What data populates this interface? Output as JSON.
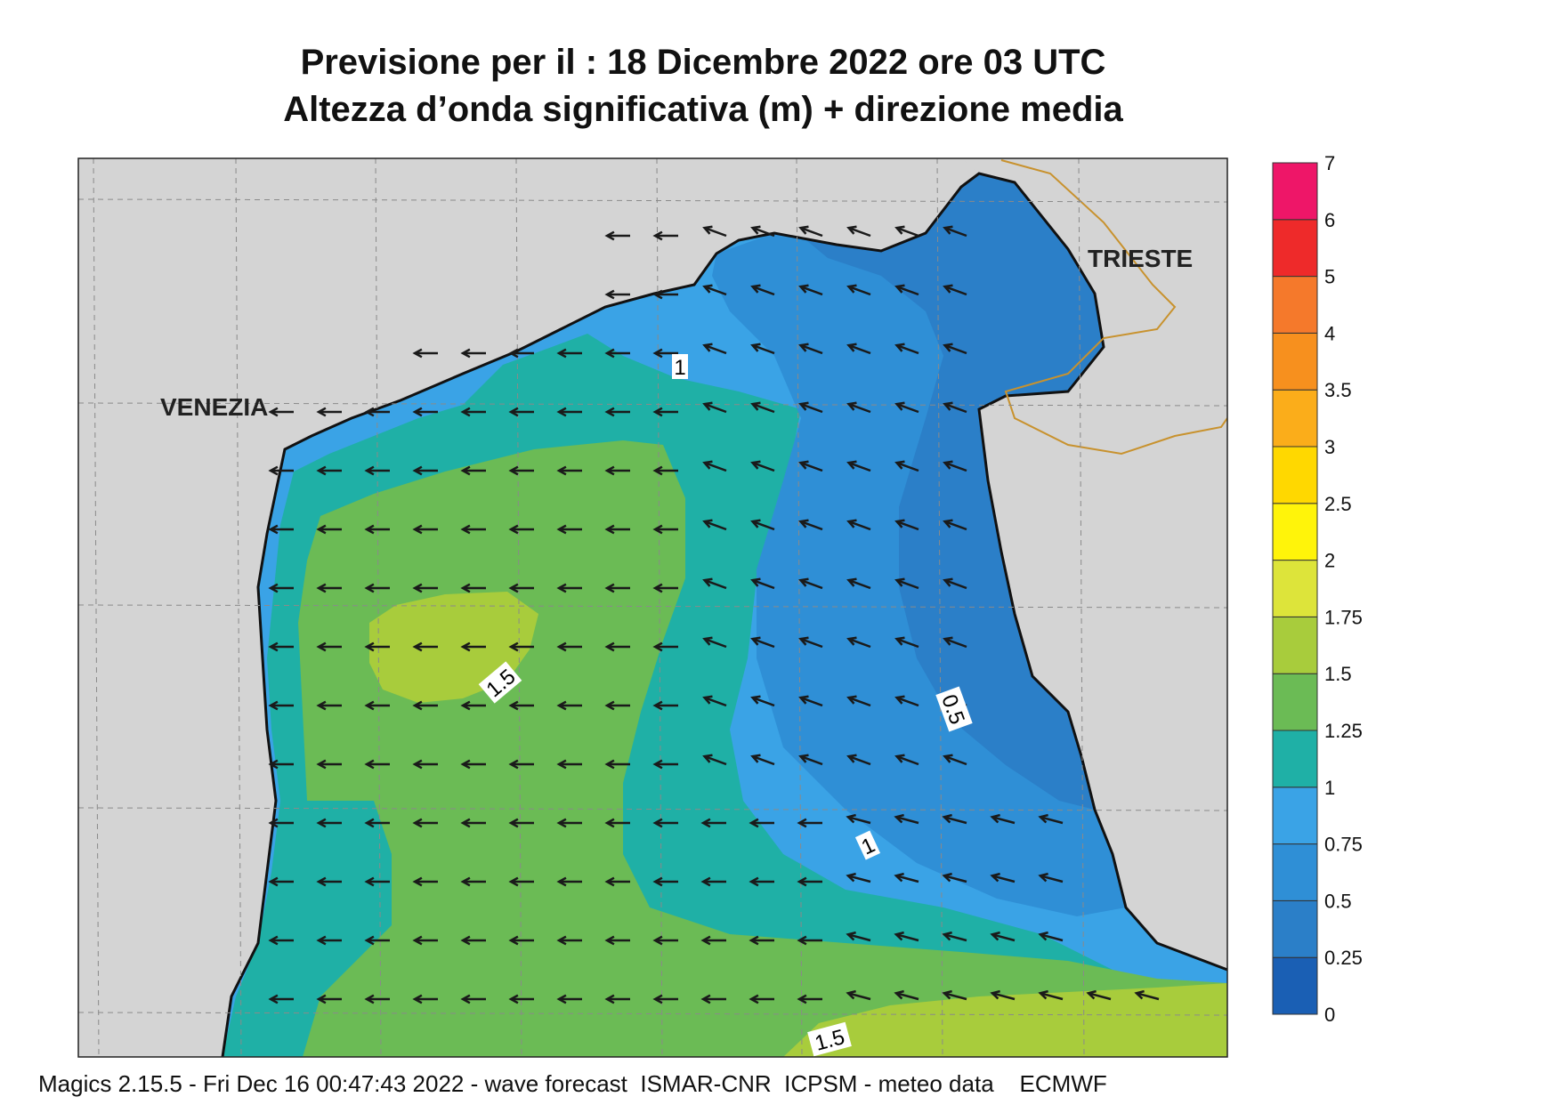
{
  "title_line1": "Previsione per il  :  18 Dicembre  2022   ore 03 UTC",
  "title_line2": "Altezza d’onda significativa (m) + direzione media",
  "footer": "Magics 2.15.5 - Fri Dec 16 00:47:43 2022 - wave forecast  ISMAR-CNR  ICPSM - meteo data    ECMWF",
  "places": [
    {
      "name": "VENEZIA"
    },
    {
      "name": "TRIESTE"
    }
  ],
  "contour_labels": [
    "1",
    "1.5",
    "0.5",
    "1",
    "1.5"
  ],
  "colorbar": {
    "bins": [
      {
        "from": "0",
        "to": "0.25",
        "color": "#1a5fb4"
      },
      {
        "from": "0.25",
        "to": "0.5",
        "color": "#2b7fc8"
      },
      {
        "from": "0.5",
        "to": "0.75",
        "color": "#2f8fd6"
      },
      {
        "from": "0.75",
        "to": "1",
        "color": "#3aa3e6"
      },
      {
        "from": "1",
        "to": "1.25",
        "color": "#1fb0a6"
      },
      {
        "from": "1.25",
        "to": "1.5",
        "color": "#6bbb55"
      },
      {
        "from": "1.5",
        "to": "1.75",
        "color": "#a8cc3c"
      },
      {
        "from": "1.75",
        "to": "2",
        "color": "#dde43a"
      },
      {
        "from": "2",
        "to": "2.5",
        "color": "#fff40a"
      },
      {
        "from": "2.5",
        "to": "3",
        "color": "#ffd800"
      },
      {
        "from": "3",
        "to": "3.5",
        "color": "#fbad1a"
      },
      {
        "from": "3.5",
        "to": "4",
        "color": "#f7901e"
      },
      {
        "from": "4",
        "to": "5",
        "color": "#f5792b"
      },
      {
        "from": "5",
        "to": "6",
        "color": "#ee2a2a"
      },
      {
        "from": "6",
        "to": "7",
        "color": "#ee1668"
      }
    ],
    "tick_labels": [
      "0",
      "0.25",
      "0.5",
      "0.75",
      "1",
      "1.25",
      "1.5",
      "1.75",
      "2",
      "2.5",
      "3",
      "3.5",
      "4",
      "5",
      "6",
      "7"
    ]
  },
  "colors": {
    "land": "#d4d4d4",
    "coast": "#111111",
    "border": "#c8922e",
    "grid": "#8a8a8a",
    "arrow": "#1a1a1a"
  }
}
